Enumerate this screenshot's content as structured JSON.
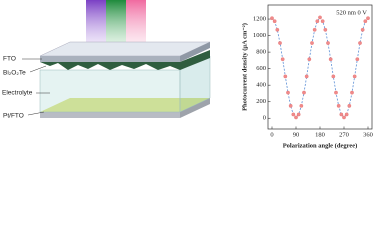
{
  "schematic": {
    "labels": [
      "FTO",
      "Bi₂O₂Te",
      "Electrolyte",
      "Pt/FTO"
    ]
  },
  "chart_data": {
    "type": "scatter",
    "annotation": "520 nm 0 V",
    "x_label": "Polarization angle (degree)",
    "y_label": "Photocurrent density (μA cm⁻²)",
    "x": [
      0,
      10,
      20,
      30,
      40,
      50,
      60,
      70,
      80,
      90,
      100,
      110,
      120,
      130,
      140,
      150,
      160,
      170,
      180,
      190,
      200,
      210,
      220,
      230,
      240,
      250,
      260,
      270,
      280,
      290,
      300,
      310,
      320,
      330,
      340,
      350,
      360
    ],
    "series": [
      {
        "color": "#f08a8a",
        "line_color": "#5b8fd6",
        "line": "dashed",
        "values": [
          1210,
          1174,
          1070,
          910,
          714,
          506,
          310,
          150,
          46,
          10,
          46,
          150,
          310,
          506,
          714,
          910,
          1070,
          1174,
          1220,
          1174,
          1070,
          910,
          714,
          506,
          310,
          150,
          46,
          10,
          46,
          150,
          310,
          506,
          714,
          910,
          1070,
          1174,
          1210
        ]
      }
    ],
    "xlim": [
      -15,
      375
    ],
    "ylim": [
      -130,
      1370
    ],
    "xticks": [
      0,
      90,
      180,
      270,
      360
    ],
    "yticks": [
      0,
      200,
      400,
      600,
      800,
      1000,
      1200
    ]
  }
}
